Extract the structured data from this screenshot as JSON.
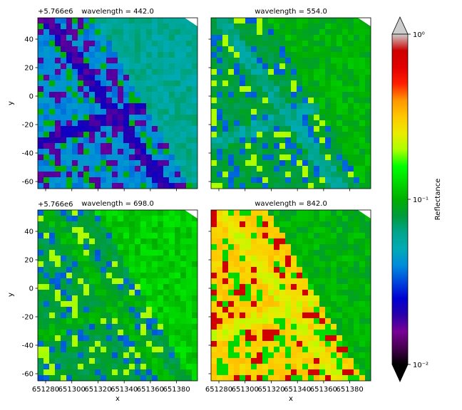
{
  "chart_data": {
    "type": "heatmap",
    "colormap": "nipy_spectral",
    "panels": [
      {
        "title": "wavelength = 442.0",
        "wavelength": 442.0,
        "dominant_levels": [
          0.04,
          0.02,
          0.06
        ]
      },
      {
        "title": "wavelength = 554.0",
        "wavelength": 554.0,
        "dominant_levels": [
          0.08,
          0.06,
          0.1
        ]
      },
      {
        "title": "wavelength = 698.0",
        "wavelength": 698.0,
        "dominant_levels": [
          0.08,
          0.1,
          0.12
        ]
      },
      {
        "title": "wavelength = 842.0",
        "wavelength": 842.0,
        "dominant_levels": [
          0.3,
          0.25,
          0.1
        ]
      }
    ],
    "xlabel": "x",
    "ylabel": "y",
    "x_offset_label": "+5.766e6",
    "x_ticks": [
      651280,
      651300,
      651320,
      651340,
      651360,
      651380
    ],
    "y_ticks": [
      40,
      20,
      0,
      -20,
      -40,
      -60
    ],
    "xlim": [
      651274,
      651396
    ],
    "ylim": [
      -65,
      55
    ],
    "colorbar": {
      "label": "Reflectance",
      "scale": "log",
      "range": [
        0.01,
        1
      ],
      "tick_labels": [
        "10⁰",
        "10⁻¹",
        "10⁻²"
      ],
      "tick_values": [
        1,
        0.1,
        0.01
      ],
      "extend": "both"
    }
  }
}
